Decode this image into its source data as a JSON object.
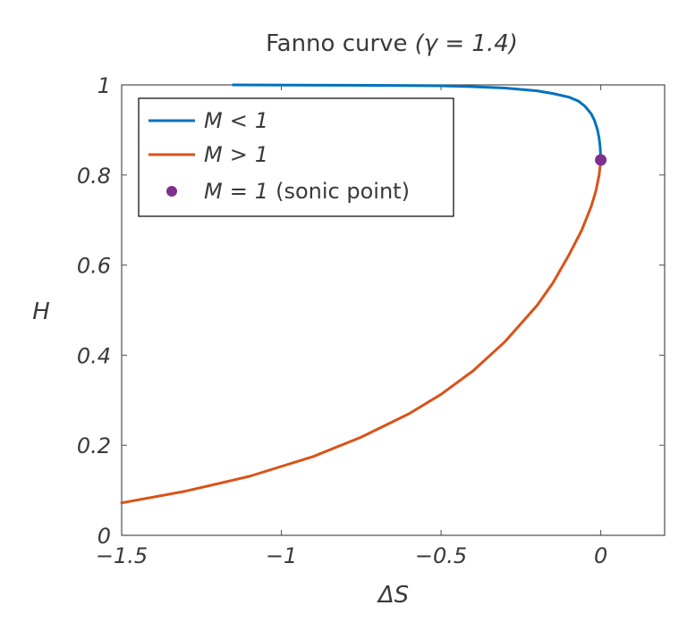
{
  "chart_data": {
    "type": "line",
    "title": "Fanno curve",
    "title_math": "(γ = 1.4)",
    "xlabel": "ΔS",
    "ylabel": "H",
    "xlim": [
      -1.5,
      0.2
    ],
    "ylim": [
      0,
      1
    ],
    "x_ticks": [
      {
        "value": -1.5,
        "label": "−1.5"
      },
      {
        "value": -1.0,
        "label": "−1"
      },
      {
        "value": -0.5,
        "label": "−0.5"
      },
      {
        "value": 0.0,
        "label": "0"
      }
    ],
    "y_ticks": [
      {
        "value": 0,
        "label": "0"
      },
      {
        "value": 0.2,
        "label": "0.2"
      },
      {
        "value": 0.4,
        "label": "0.4"
      },
      {
        "value": 0.6,
        "label": "0.6"
      },
      {
        "value": 0.8,
        "label": "0.8"
      },
      {
        "value": 1,
        "label": "1"
      }
    ],
    "grid": false,
    "legend_position": "top-left",
    "gamma": 1.4,
    "series": [
      {
        "name": "M < 1",
        "name_var": "M",
        "name_rel": "<",
        "name_val": "1",
        "color": "#0072bd",
        "kind": "line",
        "x": [
          -1.151,
          -0.95,
          -0.8,
          -0.65,
          -0.5,
          -0.4,
          -0.3,
          -0.2,
          -0.15,
          -0.1,
          -0.07,
          -0.05,
          -0.03,
          -0.02,
          -0.01,
          -0.005,
          -0.002,
          0.0
        ],
        "y": [
          1.0,
          0.9996,
          0.9993,
          0.9988,
          0.998,
          0.996,
          0.993,
          0.987,
          0.981,
          0.973,
          0.964,
          0.953,
          0.936,
          0.922,
          0.9,
          0.881,
          0.863,
          0.8333
        ]
      },
      {
        "name": "M > 1",
        "name_var": "M",
        "name_rel": ">",
        "name_val": "1",
        "color": "#d95319",
        "kind": "line",
        "x": [
          -1.5,
          -1.3,
          -1.1,
          -0.9,
          -0.75,
          -0.6,
          -0.5,
          -0.4,
          -0.3,
          -0.2,
          -0.15,
          -0.1,
          -0.06,
          -0.03,
          -0.015,
          -0.005,
          0.0
        ],
        "y": [
          0.072,
          0.098,
          0.131,
          0.175,
          0.218,
          0.27,
          0.313,
          0.365,
          0.43,
          0.51,
          0.56,
          0.622,
          0.677,
          0.73,
          0.765,
          0.8,
          0.8333
        ]
      },
      {
        "name": "M = 1 (sonic point)",
        "name_var": "M",
        "name_rel": "=",
        "name_val": "1",
        "name_suffix": "(sonic point)",
        "color": "#7e2f8e",
        "kind": "marker",
        "x": [
          0.0
        ],
        "y": [
          0.8333
        ]
      }
    ]
  }
}
